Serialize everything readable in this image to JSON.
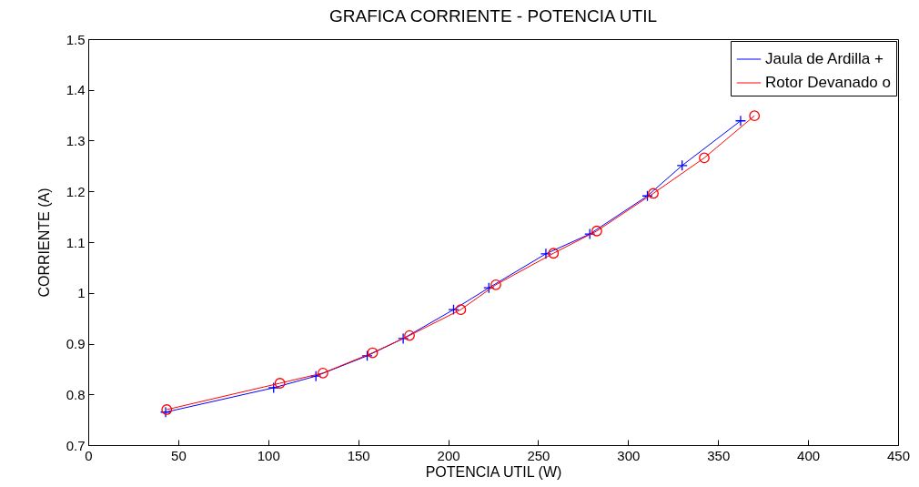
{
  "chart_data": {
    "type": "line",
    "title": "GRAFICA CORRIENTE - POTENCIA UTIL",
    "xlabel": "POTENCIA UTIL (W)",
    "ylabel": "CORRIENTE (A)",
    "xlim": [
      0,
      450
    ],
    "xticks": [
      0,
      50,
      100,
      150,
      200,
      250,
      300,
      350,
      400,
      450
    ],
    "ylim": [
      0.7,
      1.5
    ],
    "yticks": [
      0.7,
      0.8,
      0.9,
      1,
      1.1,
      1.2,
      1.3,
      1.4,
      1.5
    ],
    "grid": false,
    "legend": "top right",
    "line_style": "solid",
    "series": [
      {
        "name": "Jaula de Ardilla  +",
        "color": "#0000ff",
        "marker": "cross",
        "x": [
          43,
          103,
          126.5,
          155,
          175,
          203,
          222.6,
          254.3,
          278.7,
          310.7,
          330,
          362.5
        ],
        "values": [
          0.765,
          0.813,
          0.836,
          0.876,
          0.91,
          0.967,
          1.01,
          1.077,
          1.116,
          1.191,
          1.251,
          1.339
        ]
      },
      {
        "name": "Rotor Devanado o",
        "color": "#ff0000",
        "marker": "circle",
        "x": [
          43.6,
          106.5,
          130.4,
          158,
          178.5,
          207,
          226.5,
          258.5,
          282.6,
          314,
          342.3,
          370.2
        ],
        "values": [
          0.77,
          0.822,
          0.842,
          0.882,
          0.916,
          0.967,
          1.016,
          1.078,
          1.122,
          1.196,
          1.266,
          1.349
        ]
      }
    ]
  }
}
